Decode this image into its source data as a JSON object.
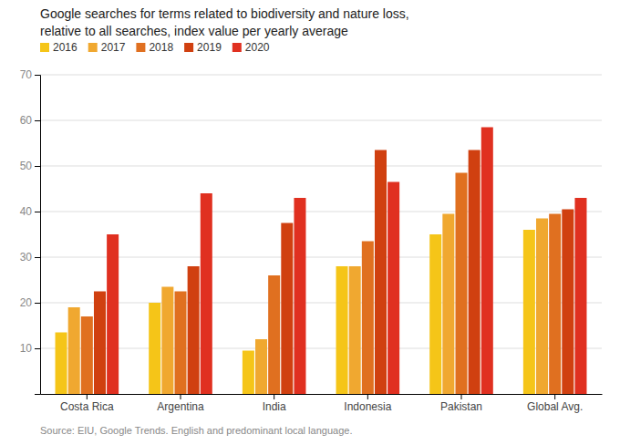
{
  "chart_data": {
    "type": "bar",
    "title": "Google searches for terms related to biodiversity and nature loss,",
    "subtitle": "relative to all searches, index value per yearly average",
    "categories": [
      "Costa Rica",
      "Argentina",
      "India",
      "Indonesia",
      "Pakistan",
      "Global Avg."
    ],
    "series": [
      {
        "name": "2016",
        "color": "#F5C518",
        "values": [
          13.5,
          20.0,
          9.5,
          28.0,
          35.0,
          36.0
        ]
      },
      {
        "name": "2017",
        "color": "#F0A830",
        "values": [
          19.0,
          23.5,
          12.0,
          28.0,
          39.5,
          38.5
        ]
      },
      {
        "name": "2018",
        "color": "#E07020",
        "values": [
          17.0,
          22.5,
          26.0,
          33.5,
          48.5,
          39.5
        ]
      },
      {
        "name": "2019",
        "color": "#D04010",
        "values": [
          22.5,
          28.0,
          37.5,
          53.5,
          53.5,
          40.5
        ]
      },
      {
        "name": "2020",
        "color": "#E03020",
        "values": [
          35.0,
          44.0,
          43.0,
          46.5,
          58.5,
          43.0
        ]
      }
    ],
    "ylim": [
      0,
      70
    ],
    "yticks": [
      10,
      20,
      30,
      40,
      50,
      60,
      70
    ],
    "grid": true,
    "legend": "top",
    "annotations": [
      "Source: EIU, Google Trends. English and predominant local language."
    ]
  }
}
